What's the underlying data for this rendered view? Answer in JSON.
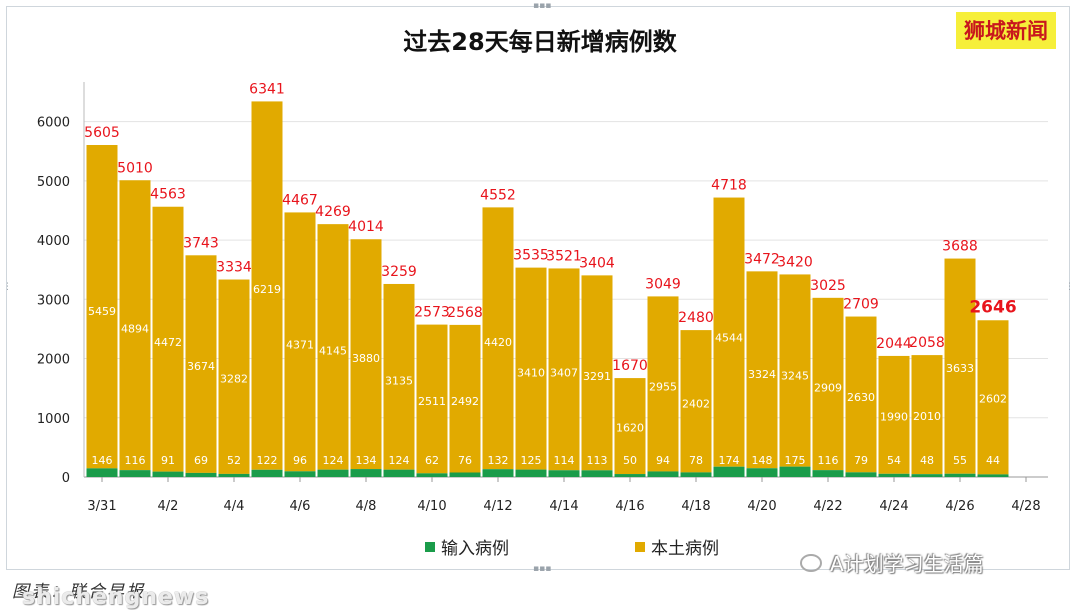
{
  "chart_data": {
    "type": "bar",
    "stacked": true,
    "title": "过去28天每日新增病例数",
    "dates": [
      "3/31",
      "4/1",
      "4/2",
      "4/3",
      "4/4",
      "4/5",
      "4/6",
      "4/7",
      "4/8",
      "4/9",
      "4/10",
      "4/11",
      "4/12",
      "4/13",
      "4/14",
      "4/15",
      "4/16",
      "4/17",
      "4/18",
      "4/19",
      "4/20",
      "4/21",
      "4/22",
      "4/23",
      "4/24",
      "4/25",
      "4/26",
      "4/27"
    ],
    "tick_labels": [
      "3/31",
      "4/2",
      "4/4",
      "4/6",
      "4/8",
      "4/10",
      "4/12",
      "4/14",
      "4/16",
      "4/18",
      "4/20",
      "4/22",
      "4/24",
      "4/26",
      "4/28"
    ],
    "ylim": [
      0,
      6500
    ],
    "yticks": [
      0,
      1000,
      2000,
      3000,
      4000,
      5000,
      6000
    ],
    "grid": true,
    "legend_position": "bottom",
    "series": [
      {
        "name": "输入病例",
        "color": "#1a9c4a",
        "values": [
          146,
          116,
          91,
          69,
          52,
          122,
          96,
          124,
          134,
          124,
          62,
          76,
          132,
          125,
          114,
          113,
          50,
          94,
          78,
          174,
          148,
          175,
          116,
          79,
          54,
          48,
          55,
          44
        ]
      },
      {
        "name": "本土病例",
        "color": "#e1aa00",
        "values": [
          5459,
          4894,
          4472,
          3674,
          3282,
          6219,
          4371,
          4145,
          3880,
          3135,
          2511,
          2492,
          4420,
          3410,
          3407,
          3291,
          1620,
          2955,
          2402,
          4544,
          3324,
          3245,
          2909,
          2630,
          1990,
          2010,
          3633,
          2602
        ]
      }
    ],
    "totals": [
      5605,
      5010,
      4563,
      3743,
      3334,
      6341,
      4467,
      4269,
      4014,
      3259,
      2573,
      2568,
      4552,
      3535,
      3521,
      3404,
      1670,
      3049,
      2480,
      4718,
      3472,
      3420,
      3025,
      2709,
      2044,
      2058,
      3688,
      2646
    ],
    "total_label_color": "#e8141c"
  },
  "branding": {
    "name": "狮城新闻",
    "bg_color": "#f6ef3a",
    "text_color": "#c8171d"
  },
  "wechat_account": "A计划学习生活篇",
  "source_credit": "图表：联合早报",
  "watermark": "shichengnews"
}
